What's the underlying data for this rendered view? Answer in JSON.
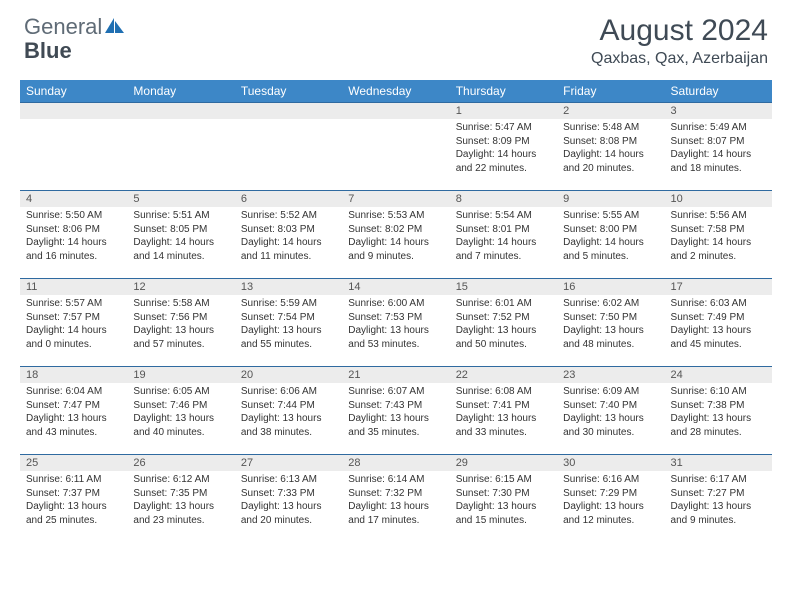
{
  "logo": {
    "part1": "General",
    "part2": "Blue"
  },
  "title": "August 2024",
  "location": "Qaxbas, Qax, Azerbaijan",
  "colors": {
    "header_bg": "#3d87c7",
    "header_text": "#ffffff",
    "daynum_bg": "#ececec",
    "row_border": "#2f6aa0",
    "logo_gray": "#5f6b76",
    "logo_dark": "#404a54",
    "logo_blue": "#1f6fb2"
  },
  "weekdays": [
    "Sunday",
    "Monday",
    "Tuesday",
    "Wednesday",
    "Thursday",
    "Friday",
    "Saturday"
  ],
  "weeks": [
    [
      {
        "n": "",
        "sr": "",
        "ss": "",
        "dl": ""
      },
      {
        "n": "",
        "sr": "",
        "ss": "",
        "dl": ""
      },
      {
        "n": "",
        "sr": "",
        "ss": "",
        "dl": ""
      },
      {
        "n": "",
        "sr": "",
        "ss": "",
        "dl": ""
      },
      {
        "n": "1",
        "sr": "Sunrise: 5:47 AM",
        "ss": "Sunset: 8:09 PM",
        "dl": "Daylight: 14 hours and 22 minutes."
      },
      {
        "n": "2",
        "sr": "Sunrise: 5:48 AM",
        "ss": "Sunset: 8:08 PM",
        "dl": "Daylight: 14 hours and 20 minutes."
      },
      {
        "n": "3",
        "sr": "Sunrise: 5:49 AM",
        "ss": "Sunset: 8:07 PM",
        "dl": "Daylight: 14 hours and 18 minutes."
      }
    ],
    [
      {
        "n": "4",
        "sr": "Sunrise: 5:50 AM",
        "ss": "Sunset: 8:06 PM",
        "dl": "Daylight: 14 hours and 16 minutes."
      },
      {
        "n": "5",
        "sr": "Sunrise: 5:51 AM",
        "ss": "Sunset: 8:05 PM",
        "dl": "Daylight: 14 hours and 14 minutes."
      },
      {
        "n": "6",
        "sr": "Sunrise: 5:52 AM",
        "ss": "Sunset: 8:03 PM",
        "dl": "Daylight: 14 hours and 11 minutes."
      },
      {
        "n": "7",
        "sr": "Sunrise: 5:53 AM",
        "ss": "Sunset: 8:02 PM",
        "dl": "Daylight: 14 hours and 9 minutes."
      },
      {
        "n": "8",
        "sr": "Sunrise: 5:54 AM",
        "ss": "Sunset: 8:01 PM",
        "dl": "Daylight: 14 hours and 7 minutes."
      },
      {
        "n": "9",
        "sr": "Sunrise: 5:55 AM",
        "ss": "Sunset: 8:00 PM",
        "dl": "Daylight: 14 hours and 5 minutes."
      },
      {
        "n": "10",
        "sr": "Sunrise: 5:56 AM",
        "ss": "Sunset: 7:58 PM",
        "dl": "Daylight: 14 hours and 2 minutes."
      }
    ],
    [
      {
        "n": "11",
        "sr": "Sunrise: 5:57 AM",
        "ss": "Sunset: 7:57 PM",
        "dl": "Daylight: 14 hours and 0 minutes."
      },
      {
        "n": "12",
        "sr": "Sunrise: 5:58 AM",
        "ss": "Sunset: 7:56 PM",
        "dl": "Daylight: 13 hours and 57 minutes."
      },
      {
        "n": "13",
        "sr": "Sunrise: 5:59 AM",
        "ss": "Sunset: 7:54 PM",
        "dl": "Daylight: 13 hours and 55 minutes."
      },
      {
        "n": "14",
        "sr": "Sunrise: 6:00 AM",
        "ss": "Sunset: 7:53 PM",
        "dl": "Daylight: 13 hours and 53 minutes."
      },
      {
        "n": "15",
        "sr": "Sunrise: 6:01 AM",
        "ss": "Sunset: 7:52 PM",
        "dl": "Daylight: 13 hours and 50 minutes."
      },
      {
        "n": "16",
        "sr": "Sunrise: 6:02 AM",
        "ss": "Sunset: 7:50 PM",
        "dl": "Daylight: 13 hours and 48 minutes."
      },
      {
        "n": "17",
        "sr": "Sunrise: 6:03 AM",
        "ss": "Sunset: 7:49 PM",
        "dl": "Daylight: 13 hours and 45 minutes."
      }
    ],
    [
      {
        "n": "18",
        "sr": "Sunrise: 6:04 AM",
        "ss": "Sunset: 7:47 PM",
        "dl": "Daylight: 13 hours and 43 minutes."
      },
      {
        "n": "19",
        "sr": "Sunrise: 6:05 AM",
        "ss": "Sunset: 7:46 PM",
        "dl": "Daylight: 13 hours and 40 minutes."
      },
      {
        "n": "20",
        "sr": "Sunrise: 6:06 AM",
        "ss": "Sunset: 7:44 PM",
        "dl": "Daylight: 13 hours and 38 minutes."
      },
      {
        "n": "21",
        "sr": "Sunrise: 6:07 AM",
        "ss": "Sunset: 7:43 PM",
        "dl": "Daylight: 13 hours and 35 minutes."
      },
      {
        "n": "22",
        "sr": "Sunrise: 6:08 AM",
        "ss": "Sunset: 7:41 PM",
        "dl": "Daylight: 13 hours and 33 minutes."
      },
      {
        "n": "23",
        "sr": "Sunrise: 6:09 AM",
        "ss": "Sunset: 7:40 PM",
        "dl": "Daylight: 13 hours and 30 minutes."
      },
      {
        "n": "24",
        "sr": "Sunrise: 6:10 AM",
        "ss": "Sunset: 7:38 PM",
        "dl": "Daylight: 13 hours and 28 minutes."
      }
    ],
    [
      {
        "n": "25",
        "sr": "Sunrise: 6:11 AM",
        "ss": "Sunset: 7:37 PM",
        "dl": "Daylight: 13 hours and 25 minutes."
      },
      {
        "n": "26",
        "sr": "Sunrise: 6:12 AM",
        "ss": "Sunset: 7:35 PM",
        "dl": "Daylight: 13 hours and 23 minutes."
      },
      {
        "n": "27",
        "sr": "Sunrise: 6:13 AM",
        "ss": "Sunset: 7:33 PM",
        "dl": "Daylight: 13 hours and 20 minutes."
      },
      {
        "n": "28",
        "sr": "Sunrise: 6:14 AM",
        "ss": "Sunset: 7:32 PM",
        "dl": "Daylight: 13 hours and 17 minutes."
      },
      {
        "n": "29",
        "sr": "Sunrise: 6:15 AM",
        "ss": "Sunset: 7:30 PM",
        "dl": "Daylight: 13 hours and 15 minutes."
      },
      {
        "n": "30",
        "sr": "Sunrise: 6:16 AM",
        "ss": "Sunset: 7:29 PM",
        "dl": "Daylight: 13 hours and 12 minutes."
      },
      {
        "n": "31",
        "sr": "Sunrise: 6:17 AM",
        "ss": "Sunset: 7:27 PM",
        "dl": "Daylight: 13 hours and 9 minutes."
      }
    ]
  ]
}
